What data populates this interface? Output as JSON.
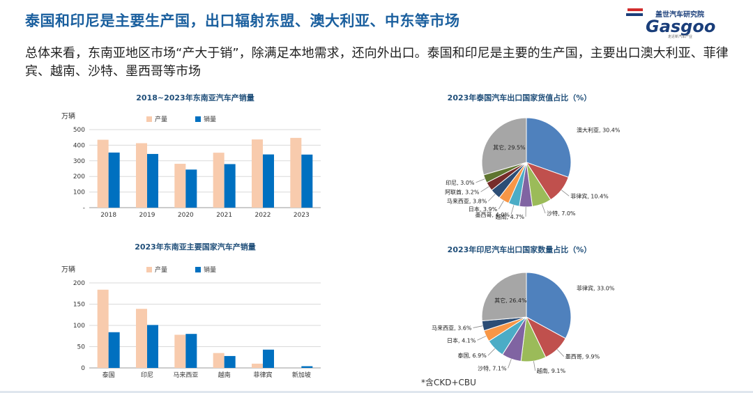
{
  "page": {
    "title": "泰国和印尼是主要生产国，出口辐射东盟、澳大利亚、中东等市场",
    "subtitle": "总体来看，东南亚地区市场“产大于销”，除满足本地需求，还向外出口。泰国和印尼是主要的生产国，主要出口澳大利亚、菲律宾、越南、沙特、墨西哥等市场",
    "footnote": "*含CKD+CBU",
    "logo": {
      "brand_cn": "盖世汽车研究院",
      "brand_en": "Gasgoo",
      "tagline": "走近新汽车产业",
      "color": "#1a3e7a",
      "accent": "#d22b2b"
    }
  },
  "colors": {
    "production": "#f8cbad",
    "sales": "#0070c0",
    "title": "#1a5f9e",
    "chart_title": "#1f4e79"
  },
  "chart_data": [
    {
      "type": "bar",
      "title": "2018~2023年东南亚汽车产销量",
      "ylabel": "万辆",
      "categories": [
        "2018",
        "2019",
        "2020",
        "2021",
        "2022",
        "2023"
      ],
      "series": [
        {
          "name": "产量",
          "values": [
            435,
            413,
            281,
            352,
            437,
            447
          ]
        },
        {
          "name": "销量",
          "values": [
            353,
            344,
            244,
            279,
            341,
            340
          ]
        }
      ],
      "ylim": [
        0,
        500
      ],
      "yticks": [
        "-",
        "100",
        "200",
        "300",
        "400",
        "500"
      ],
      "grid": true,
      "legend": "top-center"
    },
    {
      "type": "bar",
      "title": "2023年东南亚主要国家汽车产销量",
      "ylabel": "万辆",
      "categories": [
        "泰国",
        "印尼",
        "马来西亚",
        "越南",
        "菲律宾",
        "新加坡"
      ],
      "series": [
        {
          "name": "产量",
          "values": [
            184,
            139,
            78,
            35,
            10,
            0
          ]
        },
        {
          "name": "销量",
          "values": [
            84,
            101,
            80,
            28,
            43,
            4
          ]
        }
      ],
      "ylim": [
        0,
        200
      ],
      "yticks": [
        "0",
        "50",
        "100",
        "150",
        "200"
      ],
      "grid": true,
      "legend": "top-center"
    },
    {
      "type": "pie",
      "title": "2023年泰国汽车出口国家货值占比（%）",
      "slices": [
        {
          "label": "澳大利亚, 30.4%",
          "value": 30.4,
          "color": "#4f81bd"
        },
        {
          "label": "菲律宾, 10.4%",
          "value": 10.4,
          "color": "#c0504d"
        },
        {
          "label": "沙特, 7.0%",
          "value": 7.0,
          "color": "#9bbb59"
        },
        {
          "label": "越南, 4.7%",
          "value": 4.7,
          "color": "#8064a2"
        },
        {
          "label": "墨西哥, 4.0%",
          "value": 4.0,
          "color": "#4bacc6"
        },
        {
          "label": "日本, 3.9%",
          "value": 3.9,
          "color": "#f79646"
        },
        {
          "label": "马来西亚, 3.8%",
          "value": 3.8,
          "color": "#2c4d75"
        },
        {
          "label": "阿联酋, 3.2%",
          "value": 3.2,
          "color": "#772c2a"
        },
        {
          "label": "印尼, 3.0%",
          "value": 3.0,
          "color": "#5f7530"
        },
        {
          "label": "其它, 29.5%",
          "value": 29.5,
          "color": "#a6a6a6"
        }
      ]
    },
    {
      "type": "pie",
      "title": "2023年印尼汽车出口国家数量占比（%）",
      "slices": [
        {
          "label": "菲律宾, 33.0%",
          "value": 33.0,
          "color": "#4f81bd"
        },
        {
          "label": "墨西哥, 9.9%",
          "value": 9.9,
          "color": "#c0504d"
        },
        {
          "label": "越南, 9.1%",
          "value": 9.1,
          "color": "#9bbb59"
        },
        {
          "label": "沙特, 7.1%",
          "value": 7.1,
          "color": "#8064a2"
        },
        {
          "label": "泰国, 6.9%",
          "value": 6.9,
          "color": "#4bacc6"
        },
        {
          "label": "日本, 4.1%",
          "value": 4.1,
          "color": "#f79646"
        },
        {
          "label": "马来西亚, 3.6%",
          "value": 3.6,
          "color": "#2c4d75"
        },
        {
          "label": "其它, 26.4%",
          "value": 26.4,
          "color": "#a6a6a6"
        }
      ]
    }
  ]
}
